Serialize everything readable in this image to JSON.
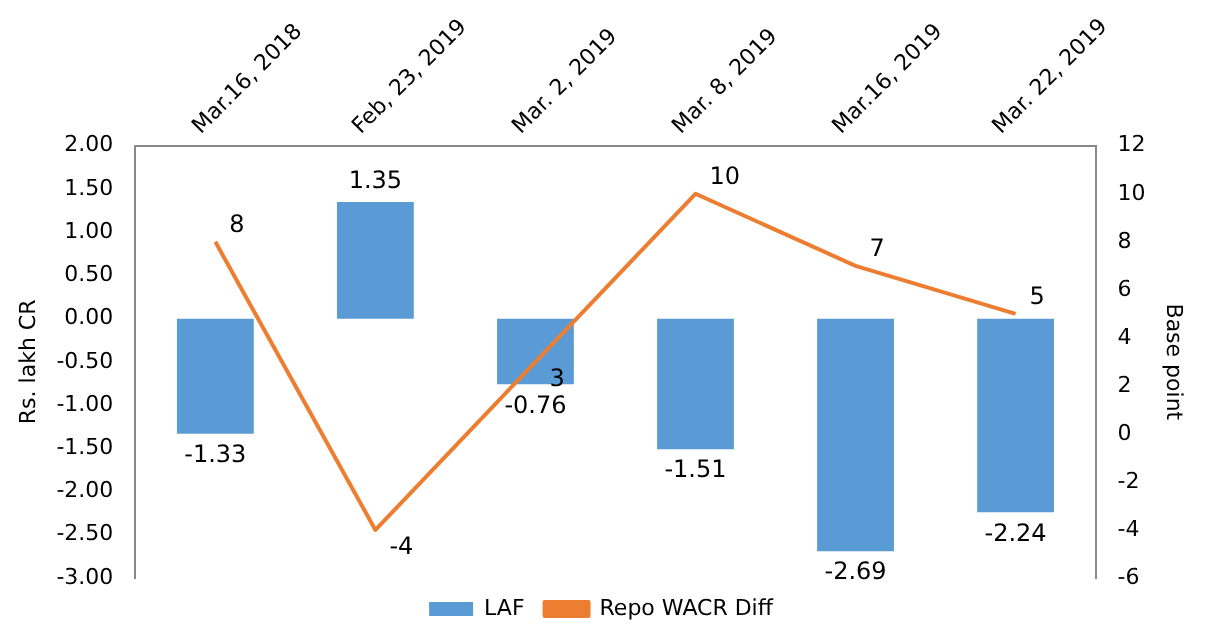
{
  "chart_data": {
    "type": "bar",
    "ylabel": "Rs. lakh CR",
    "y2label": "Base point",
    "categories": [
      "Mar.16, 2018",
      "Feb, 23, 2019",
      "Mar. 2, 2019",
      "Mar. 8, 2019",
      "Mar.16, 2019",
      "Mar. 22, 2019"
    ],
    "series": [
      {
        "name": "LAF",
        "color": "#5b9bd5",
        "values": [
          -1.33,
          1.35,
          -0.76,
          -1.51,
          -2.69,
          -2.24
        ],
        "value_labels": [
          "-1.33",
          "1.35",
          "-0.76",
          "-1.51",
          "-2.69",
          "-2.24"
        ]
      },
      {
        "name": "Repo WACR Diff",
        "type": "line",
        "axis": "y2",
        "color": "#ed7d31",
        "values": [
          8,
          -4,
          3,
          10,
          7,
          5
        ],
        "value_labels": [
          "8",
          "-4",
          "3",
          "10",
          "7",
          "5"
        ]
      }
    ],
    "ylim": [
      -3,
      2
    ],
    "yticks": [
      {
        "value": -3,
        "label": "-3.00"
      },
      {
        "value": -2.5,
        "label": "-2.50"
      },
      {
        "value": -2,
        "label": "-2.00"
      },
      {
        "value": -1.5,
        "label": "-1.50"
      },
      {
        "value": -1,
        "label": "-1.00"
      },
      {
        "value": -0.5,
        "label": "-0.50"
      },
      {
        "value": 0,
        "label": "0.00"
      },
      {
        "value": 0.5,
        "label": "0.50"
      },
      {
        "value": 1,
        "label": "1.00"
      },
      {
        "value": 1.5,
        "label": "1.50"
      },
      {
        "value": 2,
        "label": "2.00"
      }
    ],
    "y2lim": [
      -6,
      12
    ],
    "y2ticks": [
      -6,
      -4,
      -2,
      0,
      2,
      4,
      6,
      8,
      10,
      12
    ],
    "grid": false,
    "legend": "bottom",
    "marker": "none",
    "line_style": "solid"
  }
}
